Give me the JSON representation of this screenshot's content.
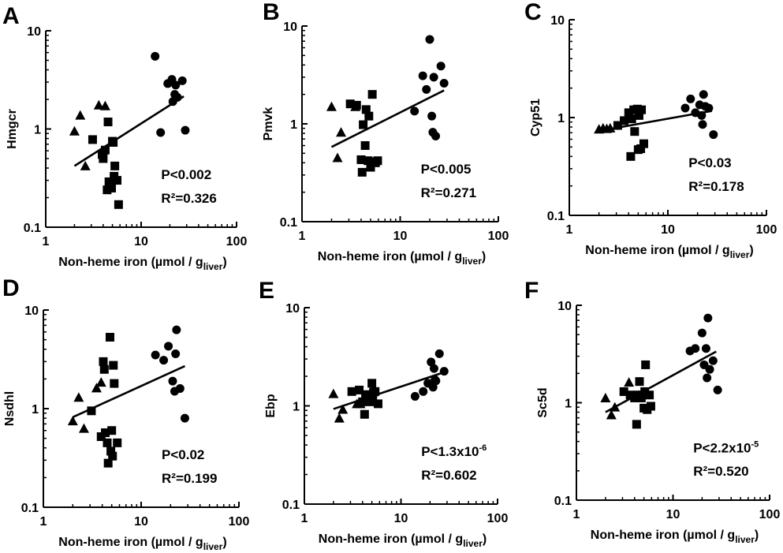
{
  "figure": {
    "xlabel_main": "Non-heme iron (µmol / g",
    "xlabel_sub": "liver",
    "xlabel_close": ")"
  },
  "chart_data": [
    {
      "panel": "A",
      "type": "scatter",
      "ylabel": "Hmgcr",
      "xscale": "log",
      "yscale": "log",
      "xlim": [
        1,
        100
      ],
      "ylim": [
        0.1,
        10
      ],
      "xticks": [
        "1",
        "10",
        "100"
      ],
      "yticks": [
        "0.1",
        "1",
        "10"
      ],
      "p_text": "P<0.002",
      "r2_text": "R²=0.326",
      "fit": {
        "x": [
          2.0,
          28
        ],
        "y": [
          0.42,
          2.15
        ]
      },
      "series": [
        {
          "marker": "triangle",
          "points": [
            [
              2.0,
              0.95
            ],
            [
              2.3,
              1.38
            ],
            [
              2.6,
              0.42
            ],
            [
              3.6,
              1.75
            ],
            [
              4.2,
              1.72
            ]
          ]
        },
        {
          "marker": "square",
          "points": [
            [
              3.1,
              0.78
            ],
            [
              3.9,
              0.55
            ],
            [
              4.0,
              0.5
            ],
            [
              4.2,
              0.61
            ],
            [
              4.5,
              1.18
            ],
            [
              4.4,
              0.24
            ],
            [
              4.6,
              0.29
            ],
            [
              4.9,
              0.25
            ],
            [
              5.0,
              0.75
            ],
            [
              5.2,
              0.33
            ],
            [
              5.3,
              0.42
            ],
            [
              5.1,
              0.73
            ],
            [
              5.6,
              0.3
            ],
            [
              5.8,
              0.17
            ]
          ]
        },
        {
          "marker": "circle",
          "points": [
            [
              14,
              5.5
            ],
            [
              16,
              0.92
            ],
            [
              19,
              2.9
            ],
            [
              21,
              3.2
            ],
            [
              21.5,
              1.9
            ],
            [
              22.5,
              2.25
            ],
            [
              23,
              2.8
            ],
            [
              24,
              2.1
            ],
            [
              27,
              3.1
            ],
            [
              29,
              0.97
            ]
          ]
        }
      ]
    },
    {
      "panel": "B",
      "type": "scatter",
      "ylabel": "Pmvk",
      "xscale": "log",
      "yscale": "log",
      "xlim": [
        1,
        100
      ],
      "ylim": [
        0.1,
        10
      ],
      "xticks": [
        "1",
        "10",
        "100"
      ],
      "yticks": [
        "0.1",
        "1",
        "10"
      ],
      "p_text": "P<0.005",
      "r2_text": "R²=0.271",
      "fit": {
        "x": [
          2.0,
          28
        ],
        "y": [
          0.58,
          2.2
        ]
      },
      "series": [
        {
          "marker": "triangle",
          "points": [
            [
              2.0,
              1.5
            ],
            [
              2.3,
              0.45
            ],
            [
              2.5,
              0.82
            ],
            [
              3.5,
              1.5
            ]
          ]
        },
        {
          "marker": "square",
          "points": [
            [
              3.1,
              1.6
            ],
            [
              3.6,
              1.55
            ],
            [
              4.0,
              0.43
            ],
            [
              4.1,
              0.32
            ],
            [
              4.2,
              0.98
            ],
            [
              4.4,
              0.6
            ],
            [
              4.5,
              1.4
            ],
            [
              4.7,
              0.42
            ],
            [
              4.8,
              1.2
            ],
            [
              5.0,
              0.36
            ],
            [
              5.2,
              2.0
            ],
            [
              5.4,
              0.41
            ],
            [
              5.6,
              0.4
            ],
            [
              5.9,
              0.42
            ]
          ]
        },
        {
          "marker": "circle",
          "points": [
            [
              14,
              1.35
            ],
            [
              17,
              3.1
            ],
            [
              18.5,
              2.25
            ],
            [
              20,
              7.3
            ],
            [
              21,
              1.2
            ],
            [
              21.5,
              0.82
            ],
            [
              22,
              3.0
            ],
            [
              23,
              0.75
            ],
            [
              26,
              3.9
            ],
            [
              28,
              2.6
            ]
          ]
        }
      ]
    },
    {
      "panel": "C",
      "type": "scatter",
      "ylabel": "Cyp51",
      "xscale": "log",
      "yscale": "log",
      "xlim": [
        1,
        100
      ],
      "ylim": [
        0.1,
        10
      ],
      "xticks": [
        "1",
        "10",
        "100"
      ],
      "yticks": [
        "0.1",
        "1",
        "10"
      ],
      "p_text": "P<0.03",
      "r2_text": "R²=0.178",
      "fit": {
        "x": [
          2.0,
          28
        ],
        "y": [
          0.73,
          1.17
        ]
      },
      "series": [
        {
          "marker": "triangle",
          "points": [
            [
              2.0,
              0.76
            ],
            [
              2.2,
              0.78
            ],
            [
              2.4,
              0.77
            ],
            [
              2.6,
              0.78
            ]
          ]
        },
        {
          "marker": "square",
          "points": [
            [
              3.1,
              0.83
            ],
            [
              3.6,
              0.93
            ],
            [
              4.0,
              1.12
            ],
            [
              4.2,
              0.4
            ],
            [
              4.3,
              0.97
            ],
            [
              4.5,
              1.2
            ],
            [
              4.6,
              0.72
            ],
            [
              4.9,
              1.22
            ],
            [
              5.0,
              0.47
            ],
            [
              5.1,
              1.05
            ],
            [
              5.3,
              0.48
            ],
            [
              5.4,
              1.2
            ],
            [
              5.7,
              0.54
            ]
          ]
        },
        {
          "marker": "circle",
          "points": [
            [
              15,
              1.25
            ],
            [
              17,
              1.55
            ],
            [
              19,
              1.12
            ],
            [
              21,
              1.35
            ],
            [
              22,
              1.05
            ],
            [
              22.5,
              0.85
            ],
            [
              23,
              1.72
            ],
            [
              24,
              1.3
            ],
            [
              26,
              1.25
            ],
            [
              29,
              0.67
            ]
          ]
        }
      ]
    },
    {
      "panel": "D",
      "type": "scatter",
      "ylabel": "Nsdhl",
      "xscale": "log",
      "yscale": "log",
      "xlim": [
        1,
        100
      ],
      "ylim": [
        0.1,
        10
      ],
      "xticks": [
        "1",
        "10",
        "100"
      ],
      "yticks": [
        "0.1",
        "1",
        "10"
      ],
      "p_text": "P<0.02",
      "r2_text": "R²=0.199",
      "fit": {
        "x": [
          2.0,
          28
        ],
        "y": [
          0.82,
          2.7
        ]
      },
      "series": [
        {
          "marker": "triangle",
          "points": [
            [
              2.0,
              0.75
            ],
            [
              2.3,
              1.3
            ],
            [
              2.6,
              0.63
            ],
            [
              3.5,
              1.62
            ],
            [
              3.9,
              1.85
            ]
          ]
        },
        {
          "marker": "square",
          "points": [
            [
              3.1,
              0.95
            ],
            [
              3.9,
              0.52
            ],
            [
              4.1,
              3.0
            ],
            [
              4.2,
              2.5
            ],
            [
              4.3,
              0.57
            ],
            [
              4.5,
              0.45
            ],
            [
              4.6,
              0.28
            ],
            [
              4.8,
              5.3
            ],
            [
              4.9,
              0.37
            ],
            [
              5.0,
              0.6
            ],
            [
              5.1,
              0.33
            ],
            [
              5.2,
              2.75
            ],
            [
              5.3,
              1.8
            ],
            [
              5.7,
              0.45
            ]
          ]
        },
        {
          "marker": "circle",
          "points": [
            [
              14,
              3.5
            ],
            [
              17,
              3.1
            ],
            [
              19,
              4.3
            ],
            [
              21,
              1.9
            ],
            [
              22,
              1.5
            ],
            [
              22.5,
              3.6
            ],
            [
              23,
              6.3
            ],
            [
              25,
              1.6
            ],
            [
              28,
              0.8
            ]
          ]
        }
      ]
    },
    {
      "panel": "E",
      "type": "scatter",
      "ylabel": "Ebp",
      "xscale": "log",
      "yscale": "log",
      "xlim": [
        1,
        100
      ],
      "ylim": [
        0.1,
        10
      ],
      "xticks": [
        "1",
        "10",
        "100"
      ],
      "yticks": [
        "0.1",
        "1",
        "10"
      ],
      "p_text": "P<1.3x10",
      "p_sup": "-6",
      "r2_text": "R²=0.602",
      "fit": {
        "x": [
          2.0,
          28
        ],
        "y": [
          0.93,
          2.2
        ]
      },
      "series": [
        {
          "marker": "triangle",
          "points": [
            [
              2.0,
              1.33
            ],
            [
              2.3,
              0.75
            ],
            [
              2.5,
              0.92
            ],
            [
              3.5,
              1.05
            ],
            [
              3.8,
              1.05
            ]
          ]
        },
        {
          "marker": "square",
          "points": [
            [
              3.1,
              1.4
            ],
            [
              3.7,
              1.45
            ],
            [
              4.0,
              1.1
            ],
            [
              4.2,
              0.82
            ],
            [
              4.3,
              1.3
            ],
            [
              4.5,
              1.2
            ],
            [
              4.7,
              1.3
            ],
            [
              4.9,
              1.1
            ],
            [
              5.0,
              1.7
            ],
            [
              5.1,
              1.2
            ],
            [
              5.2,
              1.38
            ],
            [
              5.4,
              1.4
            ],
            [
              5.8,
              1.05
            ]
          ]
        },
        {
          "marker": "circle",
          "points": [
            [
              14,
              1.25
            ],
            [
              17,
              1.4
            ],
            [
              19,
              1.7
            ],
            [
              20.5,
              2.8
            ],
            [
              21.5,
              1.55
            ],
            [
              22,
              2.4
            ],
            [
              22.5,
              1.85
            ],
            [
              23,
              1.8
            ],
            [
              25,
              3.4
            ],
            [
              28,
              2.25
            ]
          ]
        }
      ]
    },
    {
      "panel": "F",
      "type": "scatter",
      "ylabel": "Sc5d",
      "xscale": "log",
      "yscale": "log",
      "xlim": [
        1,
        100
      ],
      "ylim": [
        0.1,
        10
      ],
      "xticks": [
        "1",
        "10",
        "100"
      ],
      "yticks": [
        "0.1",
        "1",
        "10"
      ],
      "p_text": "P<2.2x10",
      "p_sup": "-5",
      "r2_text": "R²=0.520",
      "fit": {
        "x": [
          2.0,
          28
        ],
        "y": [
          0.8,
          3.35
        ]
      },
      "series": [
        {
          "marker": "triangle",
          "points": [
            [
              2.0,
              1.12
            ],
            [
              2.3,
              0.75
            ],
            [
              2.5,
              0.9
            ],
            [
              3.5,
              1.62
            ]
          ]
        },
        {
          "marker": "square",
          "points": [
            [
              3.1,
              1.3
            ],
            [
              3.6,
              1.2
            ],
            [
              4.0,
              1.12
            ],
            [
              4.2,
              0.6
            ],
            [
              4.3,
              1.2
            ],
            [
              4.5,
              1.65
            ],
            [
              4.7,
              1.12
            ],
            [
              4.8,
              1.2
            ],
            [
              5.0,
              0.88
            ],
            [
              5.1,
              1.3
            ],
            [
              5.2,
              2.45
            ],
            [
              5.4,
              0.85
            ],
            [
              5.7,
              1.2
            ],
            [
              5.9,
              0.92
            ]
          ]
        },
        {
          "marker": "circle",
          "points": [
            [
              15,
              3.4
            ],
            [
              17,
              3.6
            ],
            [
              20,
              5.2
            ],
            [
              21,
              2.45
            ],
            [
              22,
              3.6
            ],
            [
              22.5,
              1.8
            ],
            [
              23,
              7.4
            ],
            [
              24,
              2.2
            ],
            [
              26,
              2.7
            ],
            [
              29,
              1.35
            ]
          ]
        }
      ]
    }
  ]
}
